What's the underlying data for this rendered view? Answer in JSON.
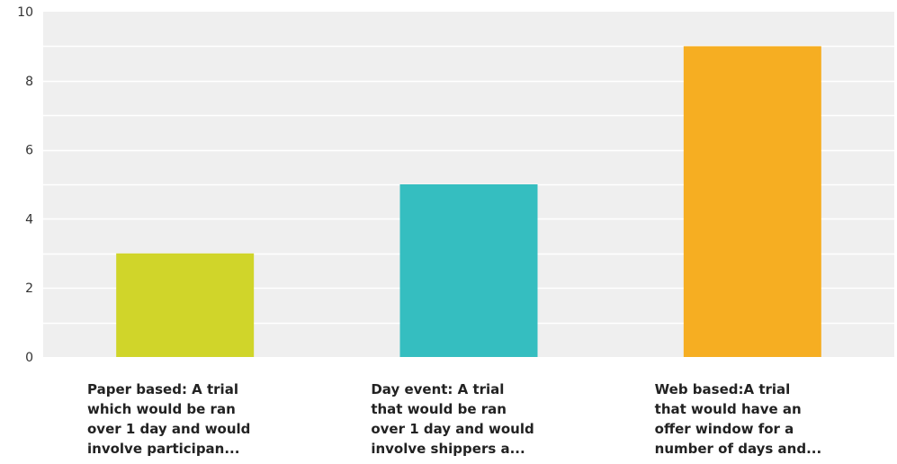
{
  "chart_data": {
    "type": "bar",
    "title": "",
    "xlabel": "",
    "ylabel": "",
    "ylim": [
      0,
      10
    ],
    "yticks": [
      0,
      2,
      4,
      6,
      8,
      10
    ],
    "grid": true,
    "categories": [
      [
        "Paper based: A trial",
        "which would be ran",
        "over 1 day and would",
        "involve participan..."
      ],
      [
        "Day event: A trial",
        "that would be ran",
        "over 1 day and would",
        "involve shippers a..."
      ],
      [
        "Web based:A trial",
        "that would have an",
        "offer window for a",
        "number of days and..."
      ]
    ],
    "values": [
      3,
      5,
      9
    ],
    "colors": [
      "#d0d52a",
      "#35bec0",
      "#f6ae22"
    ],
    "plot_background": "#efefef",
    "gridline_color": "#ffffff"
  }
}
